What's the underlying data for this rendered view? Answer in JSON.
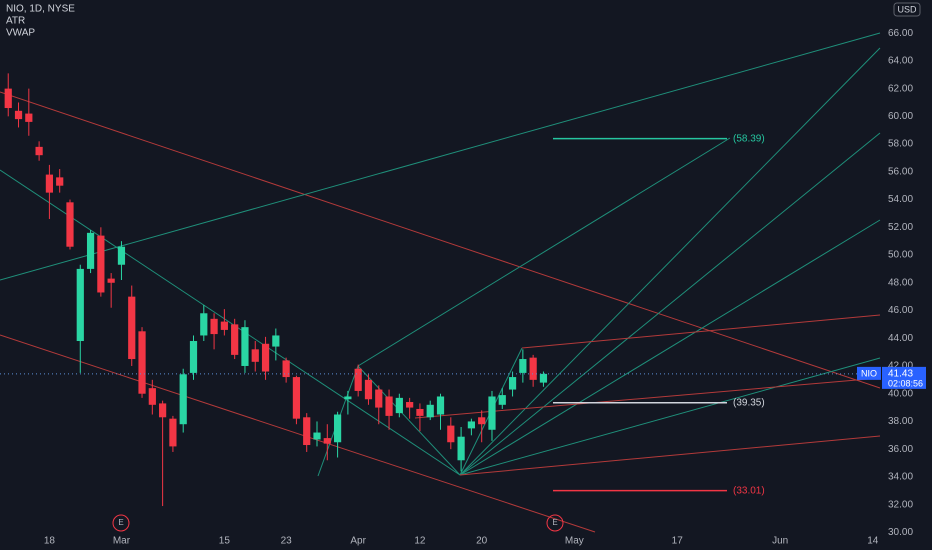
{
  "header": {
    "title": "NIO, 1D, NYSE",
    "indicators": [
      "ATR",
      "VWAP"
    ],
    "currency": "USD"
  },
  "chart_data": {
    "type": "candlestick",
    "symbol": "NIO",
    "last_price": 41.43,
    "countdown": "02:08:56",
    "up_color": "#2ad6a4",
    "down_color": "#f23645",
    "open": [
      62,
      60.4,
      60.2,
      57.8,
      55.8,
      55.6,
      53.8,
      43.8,
      49,
      51.4,
      48.3,
      49.3,
      47,
      44.5,
      40.4,
      39.3,
      38.2,
      37.8,
      41.5,
      44.2,
      45.4,
      45.2,
      45,
      42,
      43.2,
      43.6,
      43.4,
      42.4,
      41.2,
      38.3,
      36.7,
      36.8,
      36.5,
      39.6,
      41.8,
      41,
      40.3,
      39.8,
      38.6,
      39.4,
      38.9,
      38.3,
      38.5,
      37.7,
      35.2,
      37.5,
      38.3,
      37.4,
      39.2,
      40.3,
      41.5,
      42.6,
      40.8
    ],
    "high": [
      63.1,
      61,
      62,
      58.2,
      56.5,
      56.2,
      54,
      49.3,
      51.8,
      52,
      48.7,
      51,
      47.8,
      44.8,
      41,
      39.5,
      38.4,
      41.8,
      44.2,
      46.4,
      45.8,
      46.1,
      45.4,
      45.3,
      43.8,
      44.1,
      44.7,
      42.6,
      41.3,
      38.6,
      38,
      37.8,
      38.7,
      40.2,
      42.1,
      41.4,
      40.6,
      40.3,
      40,
      39.7,
      39.3,
      39.5,
      40,
      38.3,
      37.6,
      38.2,
      38.8,
      40.2,
      40.4,
      41.6,
      43.2,
      42.8,
      41.6
    ],
    "low": [
      60,
      59.2,
      58.6,
      56.8,
      52.6,
      54.5,
      50.4,
      41.5,
      48.7,
      47,
      46.2,
      48.2,
      42,
      39.7,
      38.5,
      31.9,
      35.8,
      37.2,
      41,
      43.8,
      43.2,
      44.2,
      42.5,
      41.5,
      41.6,
      41,
      42.4,
      40.8,
      37.8,
      35.8,
      36.2,
      35.2,
      35.4,
      38.5,
      39.8,
      39.2,
      37.8,
      37.4,
      38.3,
      38.2,
      37.3,
      38.1,
      37.4,
      36,
      34.4,
      37,
      36.5,
      36.6,
      38.9,
      39.8,
      40.8,
      40.5,
      40.5
    ],
    "close": [
      60.6,
      59.8,
      59.6,
      57.2,
      54.5,
      55,
      50.6,
      49,
      51.6,
      47.3,
      48,
      50.6,
      42.5,
      40,
      39.2,
      38.3,
      36.2,
      41.4,
      43.8,
      45.8,
      44.3,
      44.6,
      42.8,
      44.8,
      42.3,
      41.6,
      44.2,
      41.2,
      38.2,
      36.3,
      37.2,
      36.4,
      38.5,
      39.8,
      40.2,
      39.6,
      39,
      38.4,
      39.7,
      39,
      38.4,
      39.2,
      39.8,
      36.5,
      36.9,
      38,
      37.8,
      39.8,
      39.9,
      41.2,
      42.5,
      41,
      41.43
    ],
    "levels": [
      {
        "value": 58.39,
        "label": "(58.39)",
        "color": "#26c6a0"
      },
      {
        "value": 39.35,
        "label": "(39.35)",
        "color": "#d1d4dc"
      },
      {
        "value": 33.01,
        "label": "(33.01)",
        "color": "#f23645"
      }
    ],
    "events": [
      "E",
      "E"
    ],
    "xlim": [
      -0.8,
      84.7
    ],
    "ylim": [
      28.73,
      68.39
    ],
    "xticks": [
      {
        "value": 4,
        "label": "18"
      },
      {
        "value": 11,
        "label": "Mar"
      },
      {
        "value": 21,
        "label": "15"
      },
      {
        "value": 27,
        "label": "23"
      },
      {
        "value": 34,
        "label": "Apr"
      },
      {
        "value": 40,
        "label": "12"
      },
      {
        "value": 46,
        "label": "20"
      },
      {
        "value": 55,
        "label": "May"
      },
      {
        "value": 65,
        "label": "17"
      },
      {
        "value": 75,
        "label": "Jun"
      },
      {
        "value": 84,
        "label": "14"
      }
    ],
    "yticks": [
      {
        "value": 30,
        "label": "30.00"
      },
      {
        "value": 32,
        "label": "32.00"
      },
      {
        "value": 34,
        "label": "34.00"
      },
      {
        "value": 36,
        "label": "36.00"
      },
      {
        "value": 38,
        "label": "38.00"
      },
      {
        "value": 40,
        "label": "40.00"
      },
      {
        "value": 42,
        "label": "42.00"
      },
      {
        "value": 44,
        "label": "44.00"
      },
      {
        "value": 46,
        "label": "46.00"
      },
      {
        "value": 48,
        "label": "48.00"
      },
      {
        "value": 50,
        "label": "50.00"
      },
      {
        "value": 52,
        "label": "52.00"
      },
      {
        "value": 54,
        "label": "54.00"
      },
      {
        "value": 56,
        "label": "56.00"
      },
      {
        "value": 58,
        "label": "58.00"
      },
      {
        "value": 60,
        "label": "60.00"
      },
      {
        "value": 62,
        "label": "62.00"
      },
      {
        "value": 64,
        "label": "64.00"
      },
      {
        "value": 66,
        "label": "66.00"
      }
    ]
  }
}
